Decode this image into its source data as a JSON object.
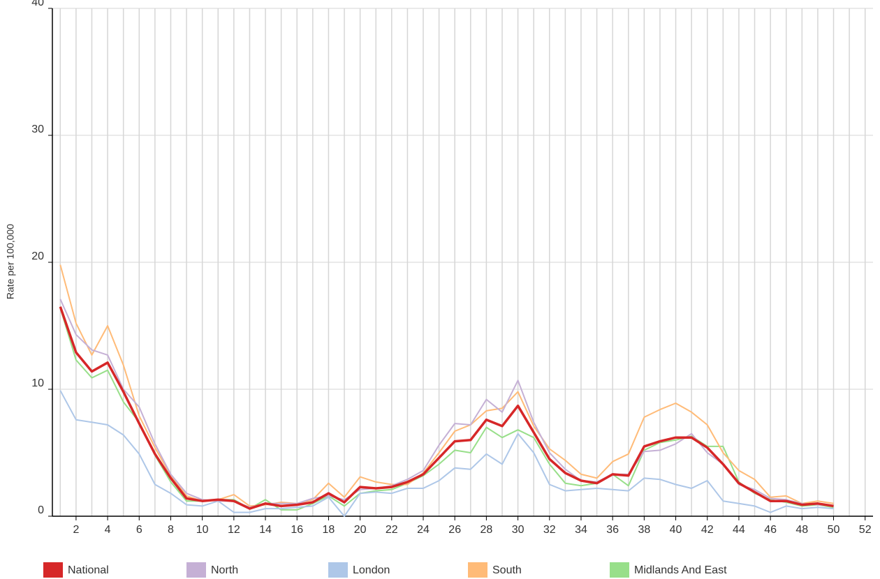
{
  "chart_data": {
    "type": "line",
    "ylabel": "Rate per 100,000",
    "categories": [
      null,
      "2",
      null,
      "4",
      null,
      "6",
      null,
      "8",
      null,
      "10",
      null,
      "12",
      null,
      "14",
      null,
      "16",
      null,
      "18",
      null,
      "20",
      null,
      "22",
      null,
      "24",
      null,
      "26",
      null,
      "28",
      null,
      "30",
      null,
      "32",
      null,
      "34",
      null,
      "36",
      null,
      "38",
      null,
      "40",
      null,
      "42",
      null,
      "44",
      null,
      "46",
      null,
      "48",
      null,
      "50",
      null,
      "52"
    ],
    "ylim": [
      0,
      40
    ],
    "yticks": [
      0,
      10,
      20,
      30,
      40
    ],
    "grid": true,
    "legend": "bottom",
    "series": [
      {
        "name": "National",
        "color": "#d62728",
        "values": [
          16.5,
          12.9,
          11.4,
          12.1,
          9.8,
          7.3,
          4.9,
          3.0,
          1.4,
          1.2,
          1.3,
          1.2,
          0.6,
          1.0,
          0.8,
          0.9,
          1.1,
          1.8,
          1.1,
          2.3,
          2.2,
          2.3,
          2.7,
          3.3,
          4.6,
          5.9,
          6.0,
          7.6,
          7.1,
          8.7,
          6.6,
          4.5,
          3.4,
          2.8,
          2.6,
          3.3,
          3.2,
          5.5,
          5.9,
          6.2,
          6.2,
          5.4,
          4.1,
          2.6,
          1.9,
          1.2,
          1.2,
          0.9,
          1.0,
          0.8,
          null,
          null
        ]
      },
      {
        "name": "North",
        "color": "#c5b0d5",
        "values": [
          17.1,
          14.3,
          13.1,
          12.7,
          10.0,
          8.6,
          5.7,
          3.3,
          1.8,
          1.3,
          1.2,
          1.2,
          0.7,
          1.0,
          1.0,
          1.0,
          1.4,
          1.6,
          1.3,
          2.1,
          2.2,
          2.4,
          2.9,
          3.6,
          5.6,
          7.3,
          7.2,
          9.2,
          8.2,
          10.7,
          7.4,
          5.0,
          3.7,
          2.8,
          2.7,
          3.3,
          3.3,
          5.1,
          5.2,
          5.7,
          6.5,
          5.0,
          4.1,
          2.5,
          2.1,
          1.4,
          1.3,
          1.0,
          0.9,
          0.8,
          null,
          null
        ]
      },
      {
        "name": "London",
        "color": "#aec7e8",
        "values": [
          9.9,
          7.6,
          7.4,
          7.2,
          6.4,
          4.9,
          2.5,
          1.8,
          0.9,
          0.8,
          1.2,
          0.3,
          0.3,
          0.6,
          0.6,
          0.7,
          0.8,
          1.5,
          0,
          1.8,
          1.9,
          1.8,
          2.2,
          2.2,
          2.8,
          3.8,
          3.7,
          4.9,
          4.1,
          6.5,
          5.0,
          2.5,
          2.0,
          2.1,
          2.2,
          2.1,
          2.0,
          3.0,
          2.9,
          2.5,
          2.2,
          2.8,
          1.2,
          1.0,
          0.8,
          0.3,
          0.8,
          0.6,
          0.7,
          0.6,
          null,
          null
        ]
      },
      {
        "name": "South",
        "color": "#ffbb78",
        "values": [
          19.8,
          15.2,
          12.7,
          15.0,
          11.9,
          7.9,
          5.4,
          3.2,
          1.6,
          1.2,
          1.3,
          1.7,
          0.8,
          0.9,
          1.1,
          1.0,
          1.3,
          2.6,
          1.5,
          3.1,
          2.7,
          2.5,
          2.5,
          3.4,
          5.0,
          6.7,
          7.2,
          8.3,
          8.5,
          9.8,
          7.1,
          5.3,
          4.4,
          3.3,
          3.0,
          4.3,
          4.9,
          7.8,
          8.4,
          8.9,
          8.2,
          7.2,
          5.0,
          3.6,
          2.9,
          1.5,
          1.6,
          1.0,
          1.2,
          1.0,
          null,
          null
        ]
      },
      {
        "name": "Midlands And East",
        "color": "#98df8a",
        "values": [
          16.4,
          12.3,
          10.9,
          11.5,
          9.0,
          7.4,
          4.8,
          2.7,
          1.2,
          1.2,
          1.3,
          1.3,
          0.6,
          1.3,
          0.5,
          0.5,
          1.0,
          1.6,
          0.8,
          1.8,
          2.0,
          2.1,
          2.6,
          3.2,
          4.1,
          5.2,
          5.0,
          7.0,
          6.2,
          6.8,
          6.2,
          4.1,
          2.6,
          2.4,
          2.6,
          3.3,
          2.4,
          5.2,
          5.8,
          6.0,
          6.3,
          5.5,
          5.5,
          2.7,
          1.8,
          1.3,
          1.1,
          0.8,
          0.9,
          0.7,
          null,
          null
        ]
      }
    ]
  }
}
